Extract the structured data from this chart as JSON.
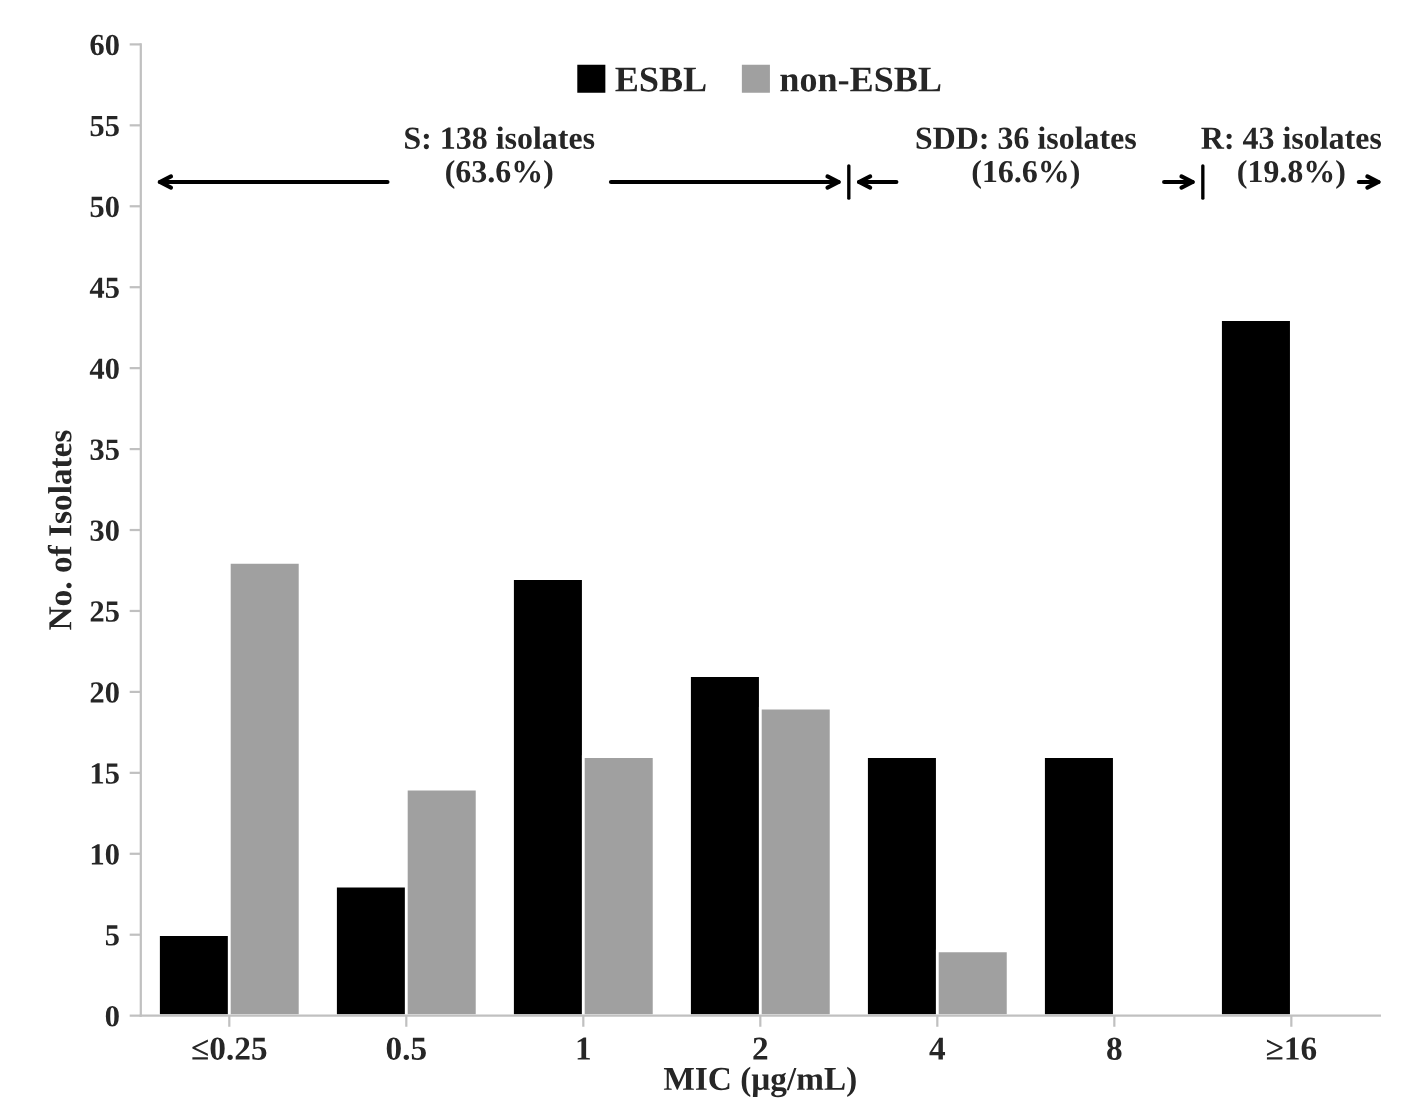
{
  "chart_data": {
    "type": "bar",
    "xlabel": "MIC (μg/mL)",
    "ylabel": "No. of Isolates",
    "categories": [
      "≤0.25",
      "0.5",
      "1",
      "2",
      "4",
      "8",
      "≥16"
    ],
    "series": [
      {
        "name": "ESBL",
        "color": "#000000",
        "values": [
          5,
          8,
          27,
          21,
          16,
          16,
          43
        ]
      },
      {
        "name": "non-ESBL",
        "color": "#a0a0a0",
        "values": [
          28,
          14,
          16,
          19,
          4,
          null,
          null
        ]
      }
    ],
    "ylim": [
      0,
      60
    ],
    "yticks": [
      0,
      5,
      10,
      15,
      20,
      25,
      30,
      35,
      40,
      45,
      50,
      55,
      60
    ],
    "annotations": [
      "S: 138 isolates\n(63.6%)",
      "SDD: 36 isolates\n(16.6%)",
      "R: 43 isolates\n(19.8%)"
    ],
    "legend": "top",
    "grid": false
  }
}
